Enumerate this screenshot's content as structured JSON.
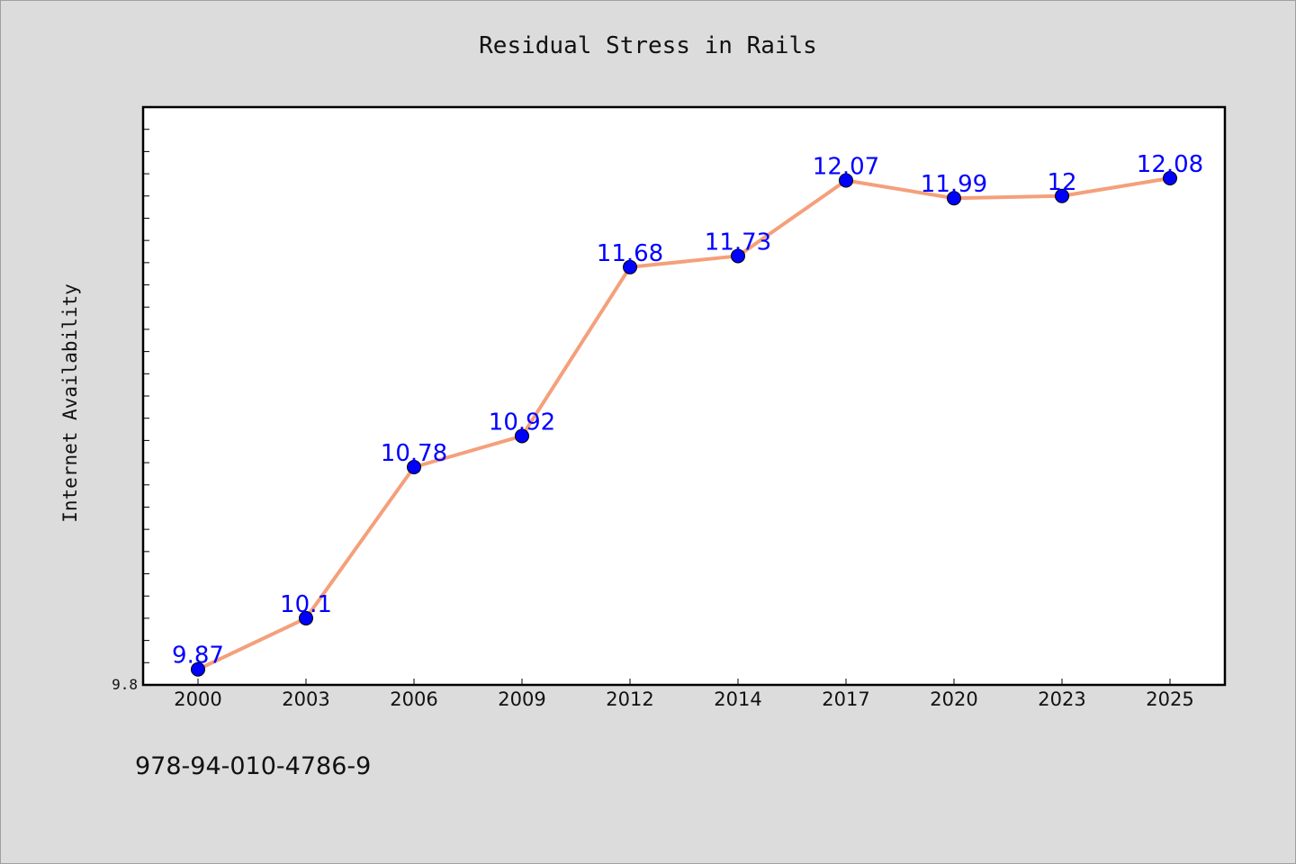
{
  "chart_data": {
    "type": "line",
    "title": "Residual Stress in Rails",
    "xlabel": "",
    "ylabel": "Internet Availability",
    "categories": [
      "2000",
      "2003",
      "2006",
      "2009",
      "2012",
      "2014",
      "2017",
      "2020",
      "2023",
      "2025"
    ],
    "series": [
      {
        "values": [
          9.87,
          10.1,
          10.78,
          10.92,
          11.68,
          11.73,
          12.07,
          11.99,
          12.0,
          12.08
        ],
        "labels": [
          "9.87",
          "10.1",
          "10.78",
          "10.92",
          "11.68",
          "11.73",
          "12.07",
          "11.99",
          "12",
          "12.08"
        ]
      }
    ],
    "ylim": [
      9.8,
      12.4
    ],
    "yticks_labeled": [
      "9.8"
    ],
    "grid": false,
    "line_color": "#f4a07a",
    "marker_color": "#0000ff",
    "label_color": "#0000ff"
  },
  "footer": {
    "code": "978-94-010-4786-9"
  }
}
